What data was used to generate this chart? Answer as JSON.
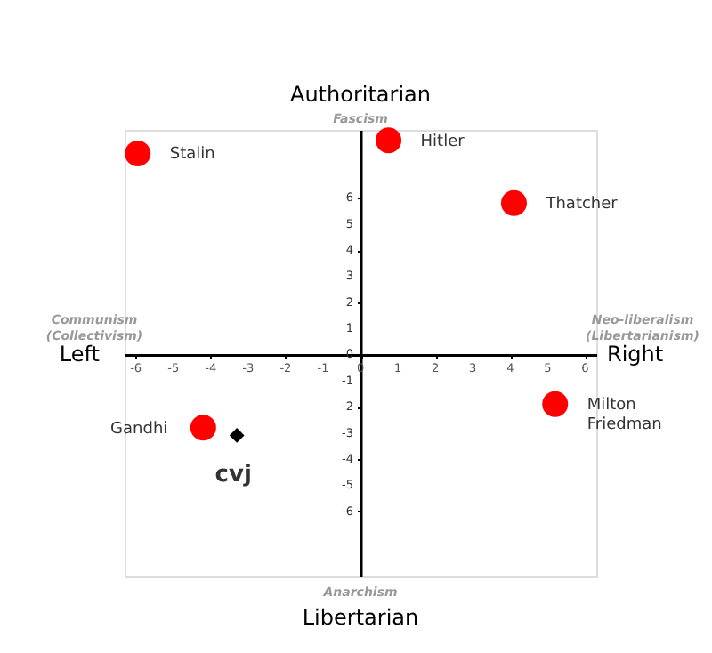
{
  "chart_data": {
    "type": "scatter",
    "xlim": [
      -6.3,
      6.3
    ],
    "ylim": [
      -8.5,
      8.6
    ],
    "xticks": [
      -6,
      -5,
      -4,
      -3,
      -2,
      -1,
      0,
      1,
      2,
      3,
      4,
      5,
      6
    ],
    "yticks": [
      -6,
      -5,
      -4,
      -3,
      -2,
      -1,
      0,
      1,
      2,
      3,
      4,
      5,
      6
    ],
    "grid": false,
    "marker": "circle",
    "series": [
      {
        "name": "Stalin",
        "color": "#ff0000",
        "x": [
          -5.95
        ],
        "values": [
          7.7
        ]
      },
      {
        "name": "Hitler",
        "color": "#ff0000",
        "x": [
          0.75
        ],
        "values": [
          8.2
        ]
      },
      {
        "name": "Thatcher",
        "color": "#ff0000",
        "x": [
          4.1
        ],
        "values": [
          5.8
        ]
      },
      {
        "name": "Gandhi",
        "color": "#ff0000",
        "x": [
          -4.2
        ],
        "values": [
          -2.8
        ]
      },
      {
        "name": "Milton Friedman",
        "color": "#ff0000",
        "x": [
          5.2
        ],
        "values": [
          -1.9
        ]
      },
      {
        "name": "cvj",
        "color": "#000000",
        "marker": "diamond",
        "x": [
          -3.3
        ],
        "values": [
          -3.1
        ]
      }
    ],
    "annotations": [
      "Authoritarian",
      "Fascism",
      "Communism (Collectivism)",
      "Left",
      "Neo-liberalism (Libertarianism)",
      "Right",
      "Anarchism",
      "Libertarian"
    ]
  }
}
